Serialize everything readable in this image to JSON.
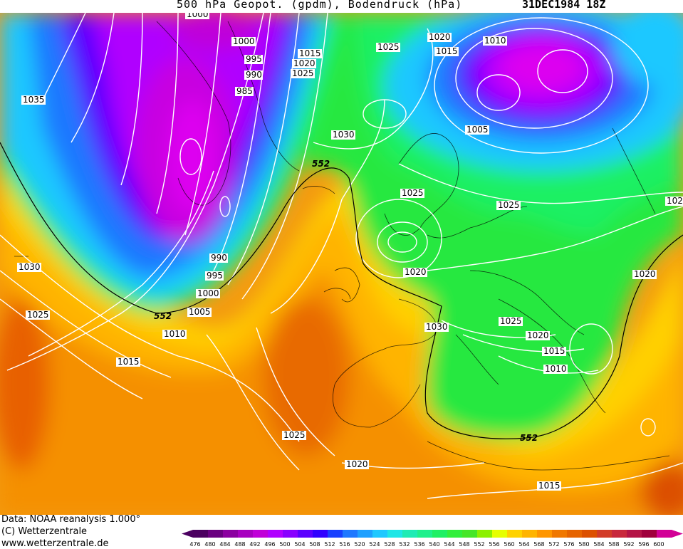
{
  "header": {
    "title": "500 hPa Geopot. (gpdm), Bodendruck (hPa)",
    "datetime": "31DEC1984 18Z"
  },
  "footer": {
    "source": "Data: NOAA reanalysis 1.000°",
    "copyright": "(C) Wetterzentrale",
    "website": "www.wetterzentrale.de"
  },
  "colorscale": {
    "ticks": [
      "476",
      "480",
      "484",
      "488",
      "492",
      "496",
      "500",
      "504",
      "508",
      "512",
      "516",
      "520",
      "524",
      "528",
      "532",
      "536",
      "540",
      "544",
      "548",
      "552",
      "556",
      "560",
      "564",
      "568",
      "572",
      "576",
      "580",
      "584",
      "588",
      "592",
      "596",
      "600"
    ],
    "colors": [
      "#4b0060",
      "#6a0080",
      "#8b00a0",
      "#a800c0",
      "#c000d8",
      "#b000ff",
      "#8800ff",
      "#5a00ff",
      "#3000ff",
      "#1840ff",
      "#1e78ff",
      "#1ea0ff",
      "#1ec8ff",
      "#1ee6e6",
      "#1eebb4",
      "#1ef08c",
      "#1ef064",
      "#32ef3c",
      "#46e628",
      "#8cf000",
      "#e6ff00",
      "#ffd200",
      "#ffb400",
      "#ff9600",
      "#f07800",
      "#e66400",
      "#dc5000",
      "#d23c28",
      "#c8283c",
      "#b41446",
      "#a0003c",
      "#d20096"
    ]
  },
  "map": {
    "special_contour_label": "552",
    "isobar_labels": [
      "1000",
      "1000",
      "995",
      "990",
      "985",
      "1015",
      "1020",
      "1025",
      "1035",
      "1025",
      "1020",
      "1015",
      "1010",
      "1005",
      "1030",
      "1025",
      "1025",
      "1020",
      "1030",
      "1025",
      "1020",
      "1015",
      "1010",
      "1020",
      "1030",
      "1025",
      "990",
      "995",
      "1000",
      "1005",
      "1010",
      "1015",
      "1025",
      "1020",
      "1015",
      "102"
    ]
  }
}
